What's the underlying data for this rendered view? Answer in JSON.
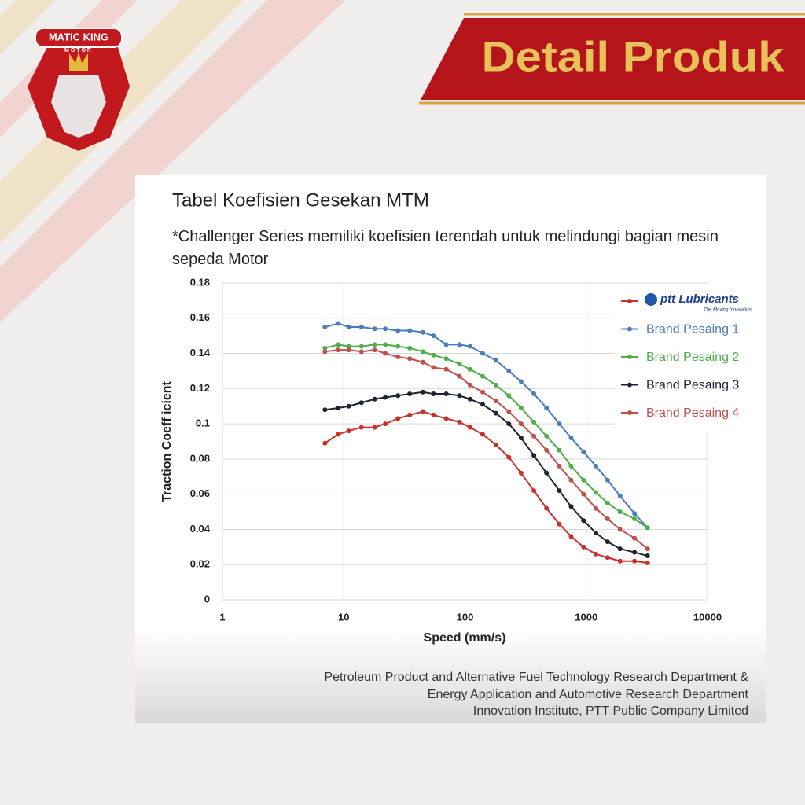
{
  "header": {
    "title": "Detail Produk"
  },
  "logo": {
    "brand": "MATIC KING",
    "sub": "MOTOR"
  },
  "chart_data": {
    "type": "line",
    "title": "Tabel Koefisien Gesekan MTM",
    "subtitle": "*Challenger Series memiliki koefisien terendah untuk melindungi bagian mesin sepeda Motor",
    "x_label": "Speed (mm/s)",
    "y_label": "Traction Coeff icient",
    "xscale": "log",
    "grid": true,
    "legend": "upper right",
    "legend_tagline": "The Moving Innovation",
    "xlim": [
      1,
      10000
    ],
    "xticks": [
      1,
      10,
      100,
      1000,
      10000
    ],
    "ylim": [
      0,
      0.18
    ],
    "yticks": [
      0,
      0.02,
      0.04,
      0.06,
      0.08,
      0.1,
      0.12,
      0.14,
      0.16,
      0.18
    ],
    "x": [
      7,
      9,
      11,
      14,
      18,
      22,
      28,
      35,
      45,
      55,
      70,
      90,
      110,
      140,
      180,
      230,
      290,
      370,
      470,
      600,
      750,
      950,
      1200,
      1500,
      1900,
      2500,
      3200
    ],
    "series": [
      {
        "name": "ptt Lubricants",
        "color": "#c9302c",
        "values": [
          0.089,
          0.094,
          0.096,
          0.098,
          0.098,
          0.1,
          0.103,
          0.105,
          0.107,
          0.105,
          0.103,
          0.101,
          0.098,
          0.094,
          0.088,
          0.081,
          0.072,
          0.062,
          0.052,
          0.043,
          0.036,
          0.03,
          0.026,
          0.024,
          0.022,
          0.022,
          0.021
        ]
      },
      {
        "name": "Brand Pesaing 1",
        "color": "#4a7ebb",
        "values": [
          0.155,
          0.157,
          0.155,
          0.155,
          0.154,
          0.154,
          0.153,
          0.153,
          0.152,
          0.15,
          0.145,
          0.145,
          0.144,
          0.14,
          0.136,
          0.13,
          0.124,
          0.117,
          0.109,
          0.1,
          0.092,
          0.084,
          0.076,
          0.068,
          0.059,
          0.049,
          0.041
        ]
      },
      {
        "name": "Brand Pesaing 2",
        "color": "#4fae4a",
        "values": [
          0.143,
          0.145,
          0.144,
          0.144,
          0.145,
          0.145,
          0.144,
          0.143,
          0.141,
          0.139,
          0.137,
          0.134,
          0.131,
          0.127,
          0.122,
          0.116,
          0.109,
          0.101,
          0.093,
          0.085,
          0.076,
          0.068,
          0.061,
          0.055,
          0.05,
          0.046,
          0.041
        ]
      },
      {
        "name": "Brand Pesaing 3",
        "color": "#1c2333",
        "values": [
          0.108,
          0.109,
          0.11,
          0.112,
          0.114,
          0.115,
          0.116,
          0.117,
          0.118,
          0.117,
          0.117,
          0.116,
          0.114,
          0.111,
          0.106,
          0.1,
          0.092,
          0.082,
          0.072,
          0.062,
          0.053,
          0.045,
          0.038,
          0.033,
          0.029,
          0.027,
          0.025
        ]
      },
      {
        "name": "Brand Pesaing 4",
        "color": "#c0504d",
        "values": [
          0.141,
          0.142,
          0.142,
          0.141,
          0.142,
          0.14,
          0.138,
          0.137,
          0.135,
          0.132,
          0.131,
          0.127,
          0.122,
          0.118,
          0.113,
          0.107,
          0.1,
          0.093,
          0.085,
          0.076,
          0.068,
          0.06,
          0.052,
          0.046,
          0.04,
          0.035,
          0.029
        ]
      }
    ]
  },
  "footer": {
    "lines": [
      "Petroleum Product and Alternative Fuel Technology Research Department &",
      "Energy Application and Automotive Research Department",
      "Innovation Institute, PTT Public Company Limited"
    ]
  }
}
